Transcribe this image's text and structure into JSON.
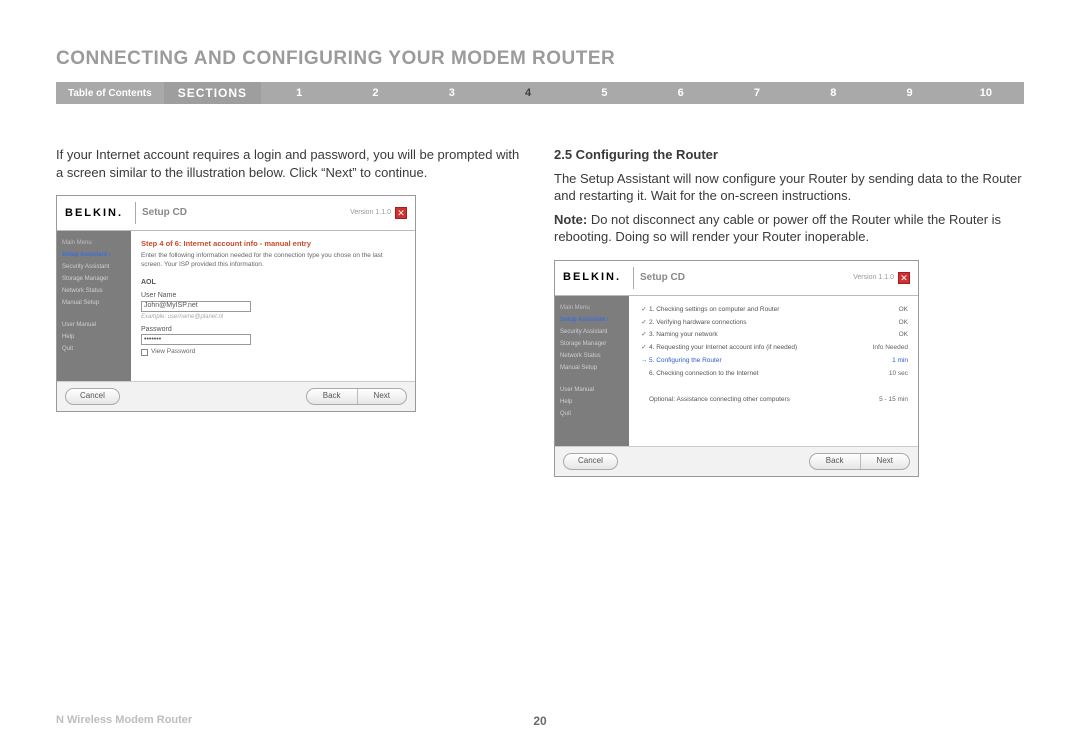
{
  "header": {
    "title": "CONNECTING AND CONFIGURING YOUR MODEM ROUTER",
    "toc": "Table of Contents",
    "sections_label": "SECTIONS",
    "sections": [
      "1",
      "2",
      "3",
      "4",
      "5",
      "6",
      "7",
      "8",
      "9",
      "10"
    ],
    "active_section_index": 3
  },
  "left": {
    "intro": "If your Internet account requires a login and password, you will be prompted with a screen similar to the illustration below. Click “Next” to continue.",
    "app": {
      "logo": "BELKIN.",
      "title": "Setup CD",
      "version": "Version 1.1.0",
      "menu": {
        "head": "Main Menu",
        "items": [
          "Setup Assistant  ›",
          "Security Assistant",
          "Storage Manager",
          "Network Status",
          "Manual Setup"
        ],
        "active_index": 0,
        "bottom": [
          "User Manual",
          "Help",
          "Quit"
        ]
      },
      "form": {
        "step_title": "Step 4 of 6: Internet account info - manual entry",
        "step_desc": "Enter the following information needed for the connection type you chose on the last screen. Your ISP provided this information.",
        "isp_label": "AOL",
        "user_label": "User Name",
        "user_value": "John@MyISP.net",
        "user_hint": "Example: username@planet.nl",
        "pass_label": "Password",
        "pass_value": "•••••••",
        "view_pass": "View Password"
      },
      "buttons": {
        "cancel": "Cancel",
        "back": "Back",
        "next": "Next"
      }
    }
  },
  "right": {
    "heading": "2.5 Configuring the Router",
    "p1": "The Setup Assistant will now configure your Router by sending data to the Router and restarting it. Wait for the on-screen instructions.",
    "note_label": "Note:",
    "note_body": " Do not disconnect any cable or power off the Router while the Router is rebooting. Doing so will render your Router inoperable.",
    "app": {
      "logo": "BELKIN.",
      "title": "Setup CD",
      "version": "Version 1.1.0",
      "menu": {
        "head": "Main Menu",
        "items": [
          "Setup Assistant  ›",
          "Security Assistant",
          "Storage Manager",
          "Network Status",
          "Manual Setup"
        ],
        "active_index": 0,
        "bottom": [
          "User Manual",
          "Help",
          "Quit"
        ]
      },
      "steps": [
        {
          "mark": "✓",
          "text": "1. Checking settings on computer and Router",
          "status": "OK",
          "active": false
        },
        {
          "mark": "✓",
          "text": "2. Verifying hardware connections",
          "status": "OK",
          "active": false
        },
        {
          "mark": "✓",
          "text": "3. Naming your network",
          "status": "OK",
          "active": false
        },
        {
          "mark": "✓",
          "text": "4. Requesting your Internet account info (if needed)",
          "status": "Info Needed",
          "active": false
        },
        {
          "mark": "→",
          "text": "5. Configuring the Router",
          "status": "1 min",
          "active": true
        },
        {
          "mark": "",
          "text": "6. Checking connection to the Internet",
          "status": "10 sec",
          "active": false
        }
      ],
      "optional": {
        "text": "Optional: Assistance connecting other computers",
        "status": "5 - 15 min"
      },
      "buttons": {
        "cancel": "Cancel",
        "back": "Back",
        "next": "Next"
      }
    }
  },
  "footer": {
    "product": "N Wireless Modem Router",
    "page": "20"
  }
}
